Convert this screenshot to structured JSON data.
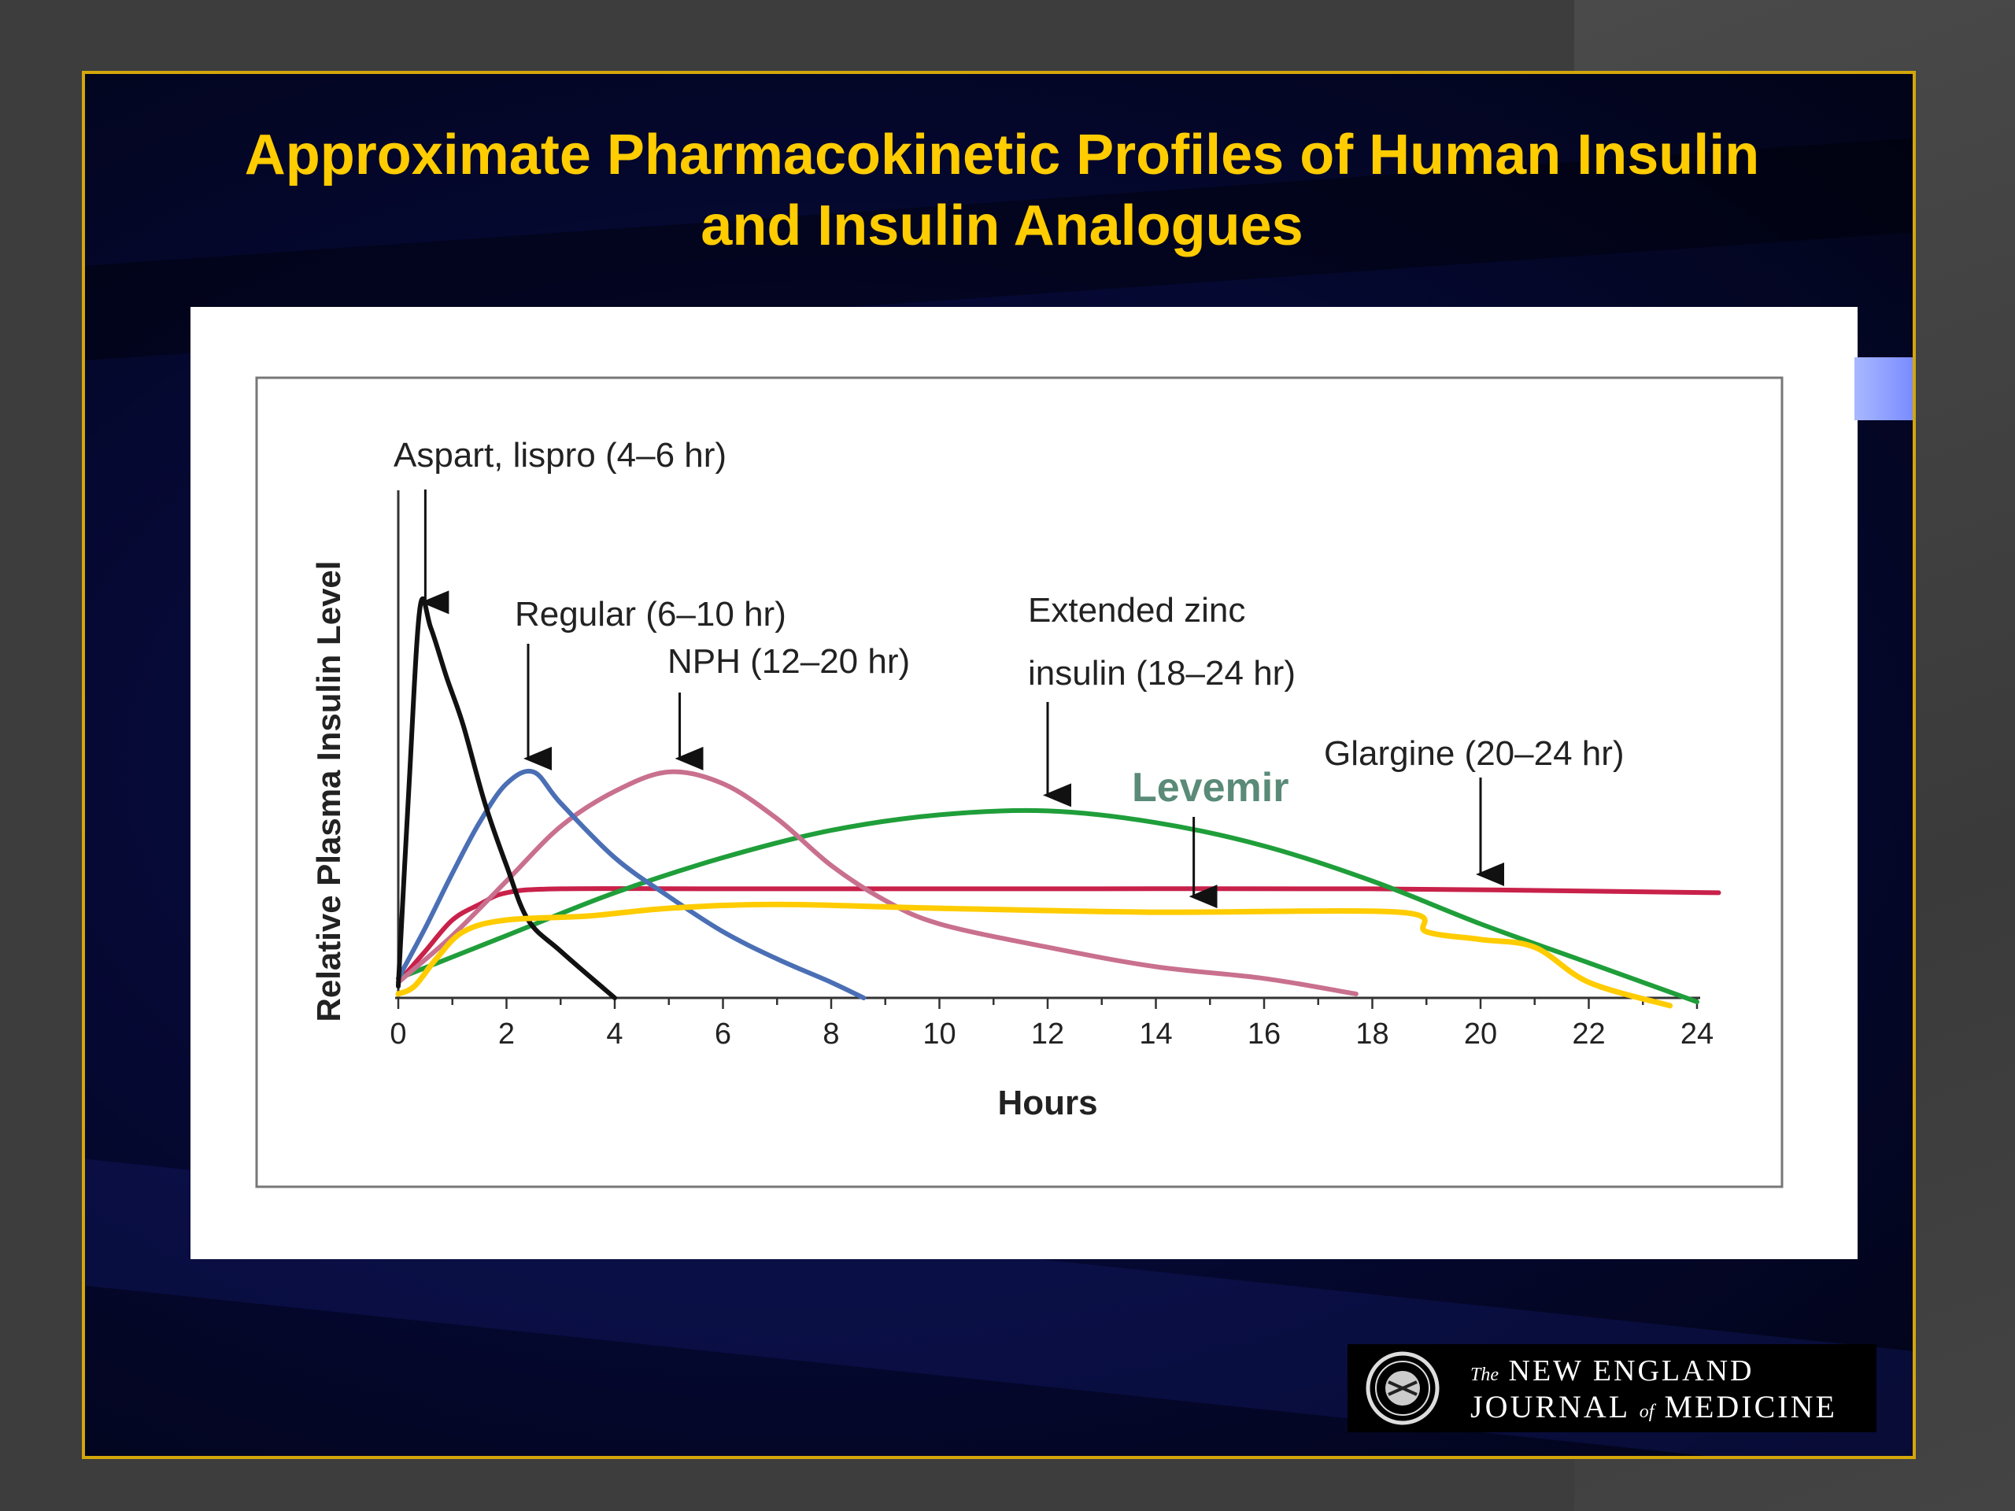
{
  "slide": {
    "title_line1": "Approximate Pharmacokinetic Profiles of Human Insulin",
    "title_line2": "and Insulin Analogues",
    "logo": {
      "line1_prefix": "The",
      "line1_main": "NEW ENGLAND",
      "line2_a": "JOURNAL",
      "line2_of": "of",
      "line2_b": "MEDICINE",
      "seal_icon": "nejm-seal-icon"
    }
  },
  "chart_data": {
    "type": "line",
    "title": "",
    "xlabel": "Hours",
    "ylabel": "Relative Plasma Insulin Level",
    "xlim": [
      0,
      24
    ],
    "ylim": [
      0,
      1
    ],
    "x_ticks": [
      0,
      2,
      4,
      6,
      8,
      10,
      12,
      14,
      16,
      18,
      20,
      22,
      24
    ],
    "grid": false,
    "legend": "none (direct labels with arrows)",
    "series": [
      {
        "name": "Aspart, lispro (4–6 hr)",
        "color": "#111111",
        "points": [
          [
            0,
            0.03
          ],
          [
            0.2,
            0.55
          ],
          [
            0.4,
            1.0
          ],
          [
            0.6,
            0.95
          ],
          [
            0.9,
            0.82
          ],
          [
            1.2,
            0.7
          ],
          [
            1.6,
            0.5
          ],
          [
            2.0,
            0.34
          ],
          [
            2.4,
            0.2
          ],
          [
            3.0,
            0.12
          ],
          [
            4.0,
            0.0
          ]
        ],
        "arrow_x": 0.5
      },
      {
        "name": "Regular (6–10 hr)",
        "color": "#4a6fb5",
        "points": [
          [
            0,
            0.05
          ],
          [
            0.5,
            0.18
          ],
          [
            1.0,
            0.32
          ],
          [
            1.5,
            0.45
          ],
          [
            2.0,
            0.55
          ],
          [
            2.5,
            0.58
          ],
          [
            3.0,
            0.5
          ],
          [
            4.0,
            0.36
          ],
          [
            5.0,
            0.26
          ],
          [
            6.0,
            0.17
          ],
          [
            7.0,
            0.1
          ],
          [
            8.0,
            0.04
          ],
          [
            8.6,
            0.0
          ]
        ],
        "arrow_x": 2.4
      },
      {
        "name": "NPH (12–20 hr)",
        "color": "#c9708f",
        "points": [
          [
            0,
            0.04
          ],
          [
            1.0,
            0.16
          ],
          [
            2.0,
            0.3
          ],
          [
            3.0,
            0.44
          ],
          [
            4.0,
            0.53
          ],
          [
            5.0,
            0.58
          ],
          [
            6.0,
            0.55
          ],
          [
            7.0,
            0.46
          ],
          [
            8.0,
            0.34
          ],
          [
            9.0,
            0.25
          ],
          [
            10.0,
            0.19
          ],
          [
            12.0,
            0.13
          ],
          [
            14.0,
            0.08
          ],
          [
            16.0,
            0.05
          ],
          [
            17.7,
            0.01
          ]
        ],
        "arrow_x": 5.2
      },
      {
        "name": "Extended zinc insulin (18–24 hr)",
        "color": "#1f9e3a",
        "points": [
          [
            0,
            0.05
          ],
          [
            2.0,
            0.16
          ],
          [
            4.0,
            0.27
          ],
          [
            6.0,
            0.36
          ],
          [
            8.0,
            0.43
          ],
          [
            10.0,
            0.47
          ],
          [
            12.0,
            0.48
          ],
          [
            14.0,
            0.45
          ],
          [
            16.0,
            0.39
          ],
          [
            18.0,
            0.3
          ],
          [
            20.0,
            0.19
          ],
          [
            22.0,
            0.09
          ],
          [
            24.0,
            -0.01
          ]
        ],
        "arrow_x": 12.0
      },
      {
        "name": "Glargine (20–24 hr)",
        "color": "#c8214a",
        "points": [
          [
            0,
            0.04
          ],
          [
            0.5,
            0.12
          ],
          [
            1.0,
            0.2
          ],
          [
            1.5,
            0.24
          ],
          [
            2.0,
            0.27
          ],
          [
            3.0,
            0.28
          ],
          [
            6.0,
            0.28
          ],
          [
            12.0,
            0.28
          ],
          [
            18.0,
            0.28
          ],
          [
            24.4,
            0.27
          ]
        ],
        "arrow_x": 20.0
      },
      {
        "name": "Levemir",
        "color": "#ffcc00",
        "points": [
          [
            0,
            0.01
          ],
          [
            0.3,
            0.03
          ],
          [
            0.7,
            0.1
          ],
          [
            1.2,
            0.17
          ],
          [
            2.0,
            0.2
          ],
          [
            3.5,
            0.21
          ],
          [
            5.0,
            0.23
          ],
          [
            7.0,
            0.24
          ],
          [
            10.0,
            0.23
          ],
          [
            14.0,
            0.22
          ],
          [
            18.5,
            0.22
          ],
          [
            19.0,
            0.17
          ],
          [
            20.0,
            0.15
          ],
          [
            21.0,
            0.13
          ],
          [
            22.0,
            0.04
          ],
          [
            23.5,
            -0.02
          ]
        ],
        "arrow_x": 14.7
      }
    ],
    "annotations": [
      {
        "text": "Aspart, lispro (4–6 hr)"
      },
      {
        "text": "Regular (6–10 hr)"
      },
      {
        "text": "NPH (12–20 hr)"
      },
      {
        "text": "Extended zinc"
      },
      {
        "text": "insulin (18–24 hr)"
      },
      {
        "text": "Glargine (20–24 hr)"
      },
      {
        "text": "Levemir",
        "color": "#5a8a78"
      }
    ]
  }
}
